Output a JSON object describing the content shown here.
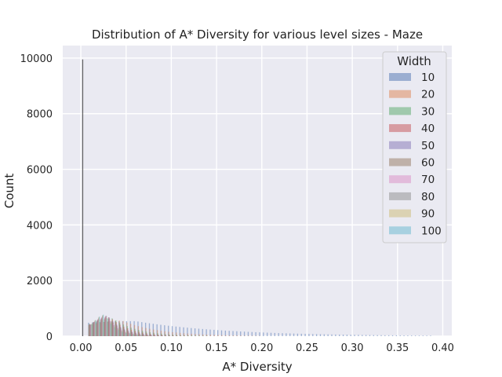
{
  "chart_data": {
    "type": "bar",
    "title": "Distribution of A* Diversity for various level sizes - Maze",
    "xlabel": "A* Diversity",
    "ylabel": "Count",
    "xlim": [
      -0.02,
      0.41
    ],
    "ylim": [
      0,
      10450
    ],
    "xticks": [
      0.0,
      0.05,
      0.1,
      0.15,
      0.2,
      0.25,
      0.3,
      0.35,
      0.4
    ],
    "xtick_labels": [
      "0.00",
      "0.05",
      "0.10",
      "0.15",
      "0.20",
      "0.25",
      "0.30",
      "0.35",
      "0.40"
    ],
    "yticks": [
      0,
      2000,
      4000,
      6000,
      8000,
      10000
    ],
    "ytick_labels": [
      "0",
      "2000",
      "4000",
      "6000",
      "8000",
      "10000"
    ],
    "grid": true,
    "legend": {
      "title": "Width",
      "placement": "top-right"
    },
    "series": [
      {
        "name": "10",
        "color": "#4c72b0",
        "peak_x": 0.06,
        "peak": 540,
        "spread": 0.11,
        "end": 0.39,
        "spike": {
          "x": 0.002,
          "value": 9950
        }
      },
      {
        "name": "20",
        "color": "#dd8452",
        "peak_x": 0.045,
        "peak": 560,
        "spread": 0.045,
        "end": 0.2
      },
      {
        "name": "30",
        "color": "#55a868",
        "peak_x": 0.035,
        "peak": 640,
        "spread": 0.03,
        "end": 0.14
      },
      {
        "name": "40",
        "color": "#c44e52",
        "peak_x": 0.032,
        "peak": 680,
        "spread": 0.024,
        "end": 0.12
      },
      {
        "name": "50",
        "color": "#8172b3",
        "peak_x": 0.03,
        "peak": 700,
        "spread": 0.02,
        "end": 0.1
      },
      {
        "name": "60",
        "color": "#937860",
        "peak_x": 0.029,
        "peak": 720,
        "spread": 0.018,
        "end": 0.09
      },
      {
        "name": "70",
        "color": "#da8bc3",
        "peak_x": 0.028,
        "peak": 740,
        "spread": 0.016,
        "end": 0.085
      },
      {
        "name": "80",
        "color": "#8c8c8c",
        "peak_x": 0.027,
        "peak": 760,
        "spread": 0.015,
        "end": 0.08
      },
      {
        "name": "90",
        "color": "#ccb974",
        "peak_x": 0.026,
        "peak": 770,
        "spread": 0.014,
        "end": 0.075
      },
      {
        "name": "100",
        "color": "#64b5cd",
        "peak_x": 0.026,
        "peak": 780,
        "spread": 0.013,
        "end": 0.07
      }
    ]
  }
}
